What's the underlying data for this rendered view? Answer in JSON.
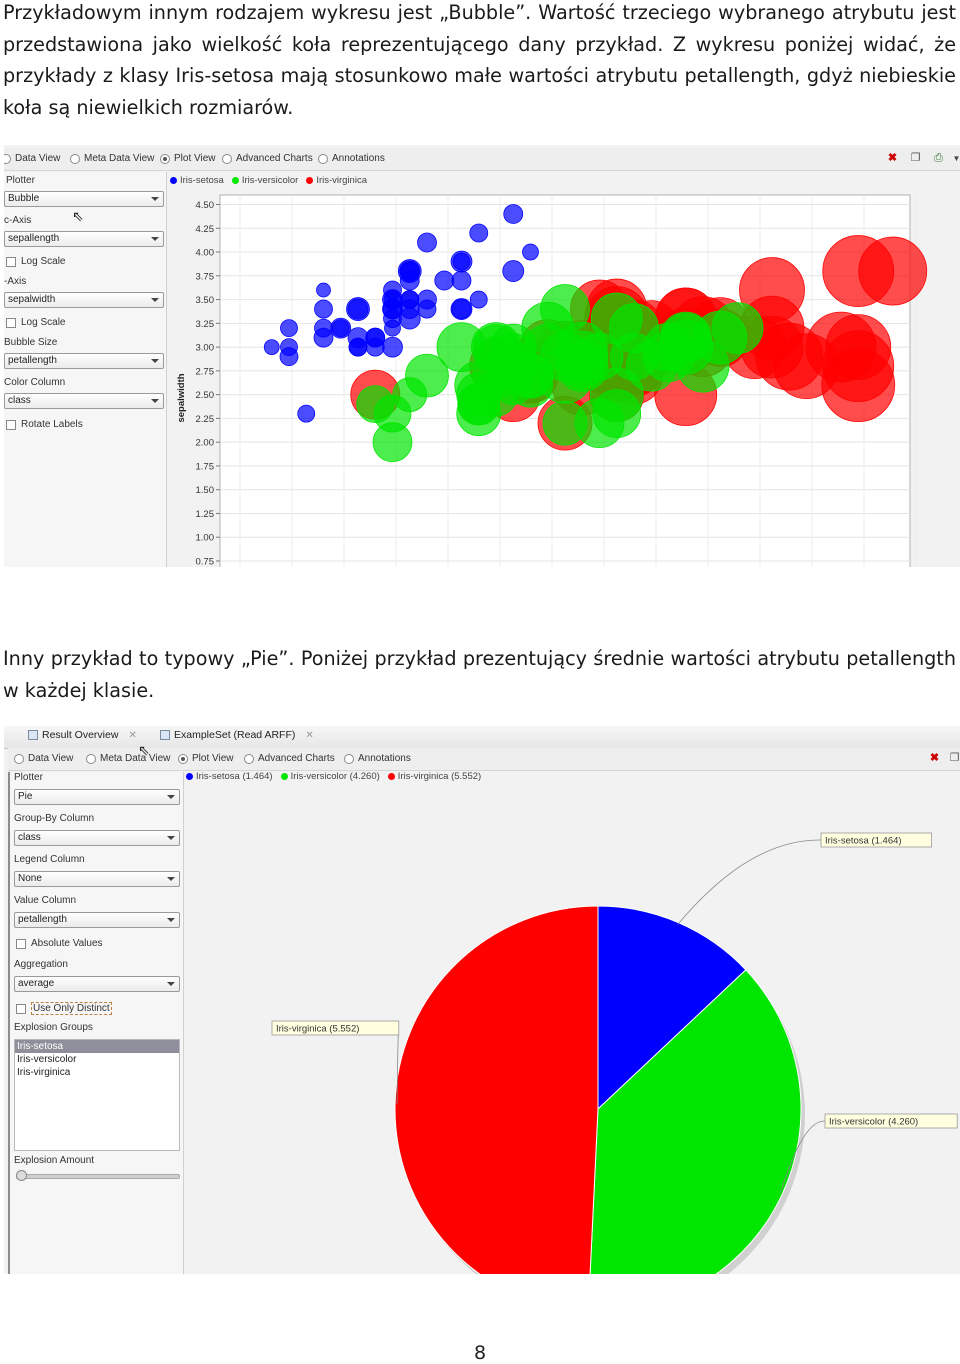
{
  "paragraph1": "Przykładowym innym rodzajem wykresu jest „Bubble”. Wartość trzeciego wybranego atrybutu jest przedstawiona jako wielkość koła reprezentującego dany przykład. Z wykresu poniżej widać, że przykłady z klasy Iris-setosa mają stosunkowo małe wartości atrybutu petallength, gdyż niebieskie koła są niewielkich rozmiarów.",
  "paragraph2": "Inny przykład to typowy „Pie”. Poniżej przykład prezentujący średnie wartości atrybutu petallength w każdej klasie.",
  "page_number": "8",
  "colors": {
    "setosa": "#0000ff",
    "versicolor": "#00e600",
    "virginica": "#ff0000"
  },
  "shot1": {
    "view_options": [
      "Data View",
      "Meta Data View",
      "Plot View",
      "Advanced Charts",
      "Annotations"
    ],
    "selected_view": "Plot View",
    "toolbar_icons": [
      "delete-icon",
      "window-icon",
      "export-icon",
      "dropdown-icon"
    ],
    "settings": {
      "plotter_label": "Plotter",
      "plotter_value": "Bubble",
      "xaxis_label": "c-Axis",
      "xaxis_value": "sepallength",
      "xlog_label": "Log Scale",
      "yaxis_label": "-Axis",
      "yaxis_value": "sepalwidth",
      "ylog_label": "Log Scale",
      "bubble_label": "Bubble Size",
      "bubble_value": "petallength",
      "color_label": "Color Column",
      "color_value": "class",
      "rotate_label": "Rotate Labels"
    },
    "legend": [
      "Iris-setosa",
      "Iris-versicolor",
      "Iris-virginica"
    ]
  },
  "chart_data": [
    {
      "type": "scatter",
      "subtype": "bubble",
      "ylabel": "sepalwidth",
      "xlabel": "",
      "y_ticks": [
        "4.50",
        "4.25",
        "4.00",
        "3.75",
        "3.50",
        "3.25",
        "3.00",
        "2.75",
        "2.50",
        "2.25",
        "2.00",
        "1.75",
        "1.50",
        "1.25",
        "1.00",
        "0.75"
      ],
      "ylim": [
        0.75,
        4.6
      ],
      "xlim": [
        4,
        8
      ],
      "grid": true,
      "legend_position": "top-left",
      "series": [
        {
          "name": "Iris-setosa",
          "color": "#0000ff",
          "points": [
            [
              5.1,
              3.5,
              1.4
            ],
            [
              4.9,
              3.0,
              1.4
            ],
            [
              4.7,
              3.2,
              1.3
            ],
            [
              4.6,
              3.1,
              1.5
            ],
            [
              5.0,
              3.6,
              1.4
            ],
            [
              5.4,
              3.9,
              1.7
            ],
            [
              4.6,
              3.4,
              1.4
            ],
            [
              5.0,
              3.4,
              1.5
            ],
            [
              4.4,
              2.9,
              1.4
            ],
            [
              4.9,
              3.1,
              1.5
            ],
            [
              5.4,
              3.7,
              1.5
            ],
            [
              4.8,
              3.4,
              1.6
            ],
            [
              4.8,
              3.0,
              1.4
            ],
            [
              4.3,
              3.0,
              1.1
            ],
            [
              5.8,
              4.0,
              1.2
            ],
            [
              5.7,
              4.4,
              1.5
            ],
            [
              5.4,
              3.9,
              1.3
            ],
            [
              5.1,
              3.5,
              1.4
            ],
            [
              5.7,
              3.8,
              1.7
            ],
            [
              5.1,
              3.8,
              1.5
            ],
            [
              5.4,
              3.4,
              1.7
            ],
            [
              5.1,
              3.7,
              1.5
            ],
            [
              4.6,
              3.6,
              1.0
            ],
            [
              5.1,
              3.3,
              1.7
            ],
            [
              4.8,
              3.4,
              1.9
            ],
            [
              5.0,
              3.0,
              1.6
            ],
            [
              5.0,
              3.4,
              1.6
            ],
            [
              5.2,
              3.5,
              1.5
            ],
            [
              5.2,
              3.4,
              1.4
            ],
            [
              4.7,
              3.2,
              1.6
            ],
            [
              4.8,
              3.1,
              1.6
            ],
            [
              5.4,
              3.4,
              1.5
            ],
            [
              5.2,
              4.1,
              1.5
            ],
            [
              5.5,
              4.2,
              1.4
            ],
            [
              4.9,
              3.1,
              1.5
            ],
            [
              5.0,
              3.2,
              1.2
            ],
            [
              5.5,
              3.5,
              1.3
            ],
            [
              4.4,
              3.0,
              1.3
            ],
            [
              5.1,
              3.4,
              1.5
            ],
            [
              5.0,
              3.5,
              1.3
            ],
            [
              4.5,
              2.3,
              1.3
            ],
            [
              4.4,
              3.2,
              1.3
            ],
            [
              5.0,
              3.5,
              1.6
            ],
            [
              5.1,
              3.8,
              1.9
            ],
            [
              4.8,
              3.0,
              1.4
            ],
            [
              5.1,
              3.8,
              1.6
            ],
            [
              4.6,
              3.2,
              1.4
            ],
            [
              5.3,
              3.7,
              1.5
            ],
            [
              5.0,
              3.3,
              1.4
            ]
          ]
        },
        {
          "name": "Iris-versicolor",
          "color": "#00e600",
          "points": [
            [
              7.0,
              3.2,
              4.7
            ],
            [
              6.4,
              3.2,
              4.5
            ],
            [
              6.9,
              3.1,
              4.9
            ],
            [
              5.5,
              2.3,
              4.0
            ],
            [
              6.5,
              2.8,
              4.6
            ],
            [
              5.7,
              2.8,
              4.5
            ],
            [
              6.3,
              3.3,
              4.7
            ],
            [
              4.9,
              2.4,
              3.3
            ],
            [
              6.6,
              2.9,
              4.6
            ],
            [
              5.2,
              2.7,
              3.9
            ],
            [
              5.0,
              2.0,
              3.5
            ],
            [
              5.9,
              3.0,
              4.2
            ],
            [
              6.0,
              2.2,
              4.0
            ],
            [
              6.1,
              2.9,
              4.7
            ],
            [
              5.6,
              2.9,
              3.6
            ],
            [
              6.7,
              3.1,
              4.4
            ],
            [
              5.6,
              3.0,
              4.5
            ],
            [
              5.8,
              2.7,
              4.1
            ],
            [
              6.2,
              2.2,
              4.5
            ],
            [
              5.6,
              2.5,
              3.9
            ],
            [
              5.9,
              3.2,
              4.8
            ],
            [
              6.1,
              2.8,
              4.0
            ],
            [
              6.3,
              2.5,
              4.9
            ],
            [
              6.1,
              2.8,
              4.7
            ],
            [
              6.4,
              2.9,
              4.3
            ],
            [
              6.6,
              3.0,
              4.4
            ],
            [
              6.8,
              2.8,
              4.8
            ],
            [
              6.7,
              3.0,
              5.0
            ],
            [
              6.0,
              2.9,
              4.5
            ],
            [
              5.7,
              2.6,
              3.5
            ],
            [
              5.5,
              2.4,
              3.8
            ],
            [
              5.5,
              2.4,
              3.7
            ],
            [
              5.8,
              2.7,
              3.9
            ],
            [
              6.0,
              2.7,
              5.1
            ],
            [
              5.4,
              3.0,
              4.5
            ],
            [
              6.0,
              3.4,
              4.5
            ],
            [
              6.7,
              3.1,
              4.7
            ],
            [
              6.3,
              2.3,
              4.4
            ],
            [
              5.6,
              3.0,
              4.1
            ],
            [
              5.5,
              2.5,
              4.0
            ],
            [
              5.5,
              2.6,
              4.4
            ],
            [
              6.1,
              3.0,
              4.6
            ],
            [
              5.8,
              2.6,
              4.0
            ],
            [
              5.0,
              2.3,
              3.3
            ],
            [
              5.6,
              2.7,
              4.2
            ],
            [
              5.7,
              3.0,
              4.2
            ],
            [
              5.7,
              2.9,
              4.2
            ],
            [
              6.2,
              2.9,
              4.3
            ],
            [
              5.1,
              2.5,
              3.0
            ],
            [
              5.7,
              2.8,
              4.1
            ]
          ]
        },
        {
          "name": "Iris-virginica",
          "color": "#ff0000",
          "points": [
            [
              6.3,
              3.3,
              6.0
            ],
            [
              5.8,
              2.7,
              5.1
            ],
            [
              7.1,
              3.0,
              5.9
            ],
            [
              6.3,
              2.9,
              5.6
            ],
            [
              6.5,
              3.0,
              5.8
            ],
            [
              7.6,
              3.0,
              6.6
            ],
            [
              4.9,
              2.5,
              4.5
            ],
            [
              7.3,
              2.9,
              6.3
            ],
            [
              6.7,
              2.5,
              5.8
            ],
            [
              7.2,
              3.6,
              6.1
            ],
            [
              6.5,
              3.2,
              5.1
            ],
            [
              6.4,
              2.7,
              5.3
            ],
            [
              6.8,
              3.0,
              5.5
            ],
            [
              5.7,
              2.5,
              5.0
            ],
            [
              5.8,
              2.8,
              5.1
            ],
            [
              6.4,
              3.2,
              5.3
            ],
            [
              6.5,
              3.0,
              5.5
            ],
            [
              7.7,
              3.8,
              6.7
            ],
            [
              7.7,
              2.6,
              6.9
            ],
            [
              6.0,
              2.2,
              5.0
            ],
            [
              6.9,
              3.2,
              5.7
            ],
            [
              5.6,
              2.8,
              4.9
            ],
            [
              7.7,
              2.8,
              6.7
            ],
            [
              6.3,
              2.7,
              4.9
            ],
            [
              6.7,
              3.3,
              5.7
            ],
            [
              7.2,
              3.2,
              6.0
            ],
            [
              6.2,
              2.8,
              4.8
            ],
            [
              6.1,
              3.0,
              4.9
            ],
            [
              6.4,
              2.8,
              5.6
            ],
            [
              7.2,
              3.0,
              5.8
            ],
            [
              7.4,
              2.8,
              6.1
            ],
            [
              7.9,
              3.8,
              6.4
            ],
            [
              6.4,
              2.8,
              5.6
            ],
            [
              6.3,
              2.8,
              5.1
            ],
            [
              6.1,
              2.6,
              5.6
            ],
            [
              7.7,
              3.0,
              6.1
            ],
            [
              6.3,
              3.4,
              5.6
            ],
            [
              6.4,
              3.1,
              5.5
            ],
            [
              6.0,
              3.0,
              4.8
            ],
            [
              6.9,
              3.1,
              5.4
            ],
            [
              6.7,
              3.1,
              5.6
            ],
            [
              6.9,
              3.1,
              5.1
            ],
            [
              5.8,
              2.7,
              5.1
            ],
            [
              6.8,
              3.2,
              5.9
            ],
            [
              6.7,
              3.3,
              5.7
            ],
            [
              6.7,
              3.0,
              5.2
            ],
            [
              6.3,
              2.5,
              5.0
            ],
            [
              6.5,
              3.0,
              5.2
            ],
            [
              6.2,
              3.4,
              5.4
            ],
            [
              5.9,
              3.0,
              5.1
            ]
          ]
        }
      ]
    },
    {
      "type": "pie",
      "categories": [
        "Iris-setosa",
        "Iris-versicolor",
        "Iris-virginica"
      ],
      "values": [
        1.464,
        4.26,
        5.552
      ],
      "labels": [
        "Iris-setosa (1.464)",
        "Iris-versicolor (4.260)",
        "Iris-virginica (5.552)"
      ],
      "colors": [
        "#0000ff",
        "#00e600",
        "#ff0000"
      ],
      "legend_position": "top"
    }
  ],
  "shot2": {
    "file_tabs": [
      "Result Overview",
      "ExampleSet (Read ARFF)"
    ],
    "view_options": [
      "Data View",
      "Meta Data View",
      "Plot View",
      "Advanced Charts",
      "Annotations"
    ],
    "selected_view": "Plot View",
    "toolbar_icons": [
      "delete-icon",
      "window-icon"
    ],
    "settings": {
      "plotter_label": "Plotter",
      "plotter_value": "Pie",
      "groupby_label": "Group-By Column",
      "groupby_value": "class",
      "legend_label": "Legend Column",
      "legend_value": "None",
      "value_label": "Value Column",
      "value_value": "petallength",
      "absolute_label": "Absolute Values",
      "aggregation_label": "Aggregation",
      "aggregation_value": "average",
      "distinct_label": "Use Only Distinct",
      "explosion_groups_label": "Explosion Groups",
      "explosion_groups": [
        "Iris-setosa",
        "Iris-versicolor",
        "Iris-virginica"
      ],
      "explosion_amount_label": "Explosion Amount"
    },
    "legend": [
      "Iris-setosa (1.464)",
      "Iris-versicolor (4.260)",
      "Iris-virginica (5.552)"
    ]
  }
}
